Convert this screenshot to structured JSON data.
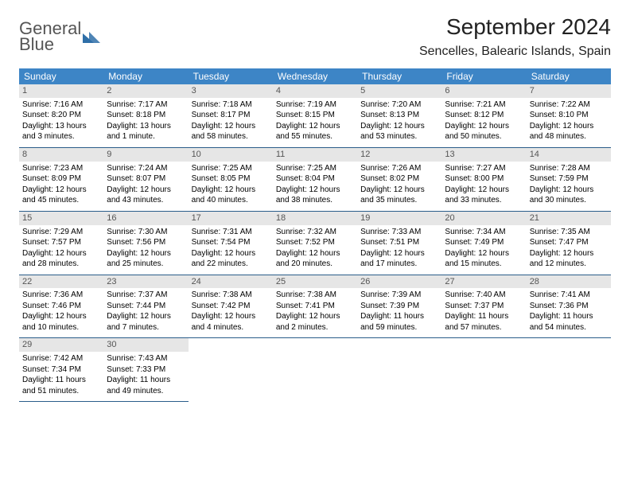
{
  "logo": {
    "line1": "General",
    "line2": "Blue"
  },
  "title": "September 2024",
  "location": "Sencelles, Balearic Islands, Spain",
  "colors": {
    "header_bg": "#3d85c6",
    "header_text": "#ffffff",
    "daynum_bg": "#e6e6e6",
    "daynum_text": "#555555",
    "cell_border": "#2a5d8a",
    "logo_gray": "#555555",
    "logo_blue": "#2f6fa8"
  },
  "daylabels": [
    "Sunday",
    "Monday",
    "Tuesday",
    "Wednesday",
    "Thursday",
    "Friday",
    "Saturday"
  ],
  "weeks": [
    [
      {
        "n": "1",
        "sr": "Sunrise: 7:16 AM",
        "ss": "Sunset: 8:20 PM",
        "dl": "Daylight: 13 hours and 3 minutes."
      },
      {
        "n": "2",
        "sr": "Sunrise: 7:17 AM",
        "ss": "Sunset: 8:18 PM",
        "dl": "Daylight: 13 hours and 1 minute."
      },
      {
        "n": "3",
        "sr": "Sunrise: 7:18 AM",
        "ss": "Sunset: 8:17 PM",
        "dl": "Daylight: 12 hours and 58 minutes."
      },
      {
        "n": "4",
        "sr": "Sunrise: 7:19 AM",
        "ss": "Sunset: 8:15 PM",
        "dl": "Daylight: 12 hours and 55 minutes."
      },
      {
        "n": "5",
        "sr": "Sunrise: 7:20 AM",
        "ss": "Sunset: 8:13 PM",
        "dl": "Daylight: 12 hours and 53 minutes."
      },
      {
        "n": "6",
        "sr": "Sunrise: 7:21 AM",
        "ss": "Sunset: 8:12 PM",
        "dl": "Daylight: 12 hours and 50 minutes."
      },
      {
        "n": "7",
        "sr": "Sunrise: 7:22 AM",
        "ss": "Sunset: 8:10 PM",
        "dl": "Daylight: 12 hours and 48 minutes."
      }
    ],
    [
      {
        "n": "8",
        "sr": "Sunrise: 7:23 AM",
        "ss": "Sunset: 8:09 PM",
        "dl": "Daylight: 12 hours and 45 minutes."
      },
      {
        "n": "9",
        "sr": "Sunrise: 7:24 AM",
        "ss": "Sunset: 8:07 PM",
        "dl": "Daylight: 12 hours and 43 minutes."
      },
      {
        "n": "10",
        "sr": "Sunrise: 7:25 AM",
        "ss": "Sunset: 8:05 PM",
        "dl": "Daylight: 12 hours and 40 minutes."
      },
      {
        "n": "11",
        "sr": "Sunrise: 7:25 AM",
        "ss": "Sunset: 8:04 PM",
        "dl": "Daylight: 12 hours and 38 minutes."
      },
      {
        "n": "12",
        "sr": "Sunrise: 7:26 AM",
        "ss": "Sunset: 8:02 PM",
        "dl": "Daylight: 12 hours and 35 minutes."
      },
      {
        "n": "13",
        "sr": "Sunrise: 7:27 AM",
        "ss": "Sunset: 8:00 PM",
        "dl": "Daylight: 12 hours and 33 minutes."
      },
      {
        "n": "14",
        "sr": "Sunrise: 7:28 AM",
        "ss": "Sunset: 7:59 PM",
        "dl": "Daylight: 12 hours and 30 minutes."
      }
    ],
    [
      {
        "n": "15",
        "sr": "Sunrise: 7:29 AM",
        "ss": "Sunset: 7:57 PM",
        "dl": "Daylight: 12 hours and 28 minutes."
      },
      {
        "n": "16",
        "sr": "Sunrise: 7:30 AM",
        "ss": "Sunset: 7:56 PM",
        "dl": "Daylight: 12 hours and 25 minutes."
      },
      {
        "n": "17",
        "sr": "Sunrise: 7:31 AM",
        "ss": "Sunset: 7:54 PM",
        "dl": "Daylight: 12 hours and 22 minutes."
      },
      {
        "n": "18",
        "sr": "Sunrise: 7:32 AM",
        "ss": "Sunset: 7:52 PM",
        "dl": "Daylight: 12 hours and 20 minutes."
      },
      {
        "n": "19",
        "sr": "Sunrise: 7:33 AM",
        "ss": "Sunset: 7:51 PM",
        "dl": "Daylight: 12 hours and 17 minutes."
      },
      {
        "n": "20",
        "sr": "Sunrise: 7:34 AM",
        "ss": "Sunset: 7:49 PM",
        "dl": "Daylight: 12 hours and 15 minutes."
      },
      {
        "n": "21",
        "sr": "Sunrise: 7:35 AM",
        "ss": "Sunset: 7:47 PM",
        "dl": "Daylight: 12 hours and 12 minutes."
      }
    ],
    [
      {
        "n": "22",
        "sr": "Sunrise: 7:36 AM",
        "ss": "Sunset: 7:46 PM",
        "dl": "Daylight: 12 hours and 10 minutes."
      },
      {
        "n": "23",
        "sr": "Sunrise: 7:37 AM",
        "ss": "Sunset: 7:44 PM",
        "dl": "Daylight: 12 hours and 7 minutes."
      },
      {
        "n": "24",
        "sr": "Sunrise: 7:38 AM",
        "ss": "Sunset: 7:42 PM",
        "dl": "Daylight: 12 hours and 4 minutes."
      },
      {
        "n": "25",
        "sr": "Sunrise: 7:38 AM",
        "ss": "Sunset: 7:41 PM",
        "dl": "Daylight: 12 hours and 2 minutes."
      },
      {
        "n": "26",
        "sr": "Sunrise: 7:39 AM",
        "ss": "Sunset: 7:39 PM",
        "dl": "Daylight: 11 hours and 59 minutes."
      },
      {
        "n": "27",
        "sr": "Sunrise: 7:40 AM",
        "ss": "Sunset: 7:37 PM",
        "dl": "Daylight: 11 hours and 57 minutes."
      },
      {
        "n": "28",
        "sr": "Sunrise: 7:41 AM",
        "ss": "Sunset: 7:36 PM",
        "dl": "Daylight: 11 hours and 54 minutes."
      }
    ],
    [
      {
        "n": "29",
        "sr": "Sunrise: 7:42 AM",
        "ss": "Sunset: 7:34 PM",
        "dl": "Daylight: 11 hours and 51 minutes."
      },
      {
        "n": "30",
        "sr": "Sunrise: 7:43 AM",
        "ss": "Sunset: 7:33 PM",
        "dl": "Daylight: 11 hours and 49 minutes."
      },
      null,
      null,
      null,
      null,
      null
    ]
  ]
}
